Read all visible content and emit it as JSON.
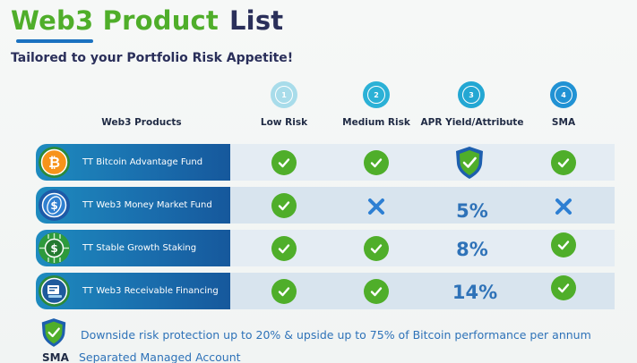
{
  "title": {
    "part1": "Web3 Product",
    "part2": "List"
  },
  "subtitle": "Tailored to your Portfolio Risk Appetite!",
  "colors": {
    "brand_green": "#4fae2a",
    "brand_navy": "#2a2f5a",
    "accent_blue": "#2e72b8",
    "step_circle": "#2bb1d6",
    "cross_blue": "#2d7fd3"
  },
  "columns": {
    "product_header": "Web3 Products",
    "items": [
      {
        "step": "1",
        "label": "Low Risk",
        "step_color": "#a8dcea"
      },
      {
        "step": "2",
        "label": "Medium Risk",
        "step_color": "#2bb1d6"
      },
      {
        "step": "3",
        "label": "APR Yield/Attribute",
        "step_color": "#23a7d3"
      },
      {
        "step": "4",
        "label": "SMA",
        "step_color": "#2192d4"
      }
    ]
  },
  "rows": [
    {
      "name": "TT Bitcoin Advantage Fund",
      "icon": "bitcoin-icon",
      "low_risk": "check",
      "medium_risk": "check",
      "apr": {
        "type": "shield"
      },
      "sma": "check"
    },
    {
      "name": "TT Web3 Money Market Fund",
      "icon": "coin-icon",
      "low_risk": "check",
      "medium_risk": "cross",
      "apr": {
        "type": "text",
        "value": "5%"
      },
      "sma": "cross"
    },
    {
      "name": "TT Stable Growth Staking",
      "icon": "dollar-chip-icon",
      "low_risk": "check",
      "medium_risk": "check",
      "apr": {
        "type": "text",
        "value": "8%"
      },
      "sma": "check"
    },
    {
      "name": "TT Web3  Receivable Financing",
      "icon": "invoice-icon",
      "low_risk": "check",
      "medium_risk": "check",
      "apr": {
        "type": "text",
        "value": "14%"
      },
      "sma": "check"
    }
  ],
  "legend": {
    "shield_text": "Downside risk protection up to 20% & upside up to 75% of Bitcoin performance per annum",
    "sma_abbr": "SMA",
    "sma_full": "Separated Managed Account"
  }
}
